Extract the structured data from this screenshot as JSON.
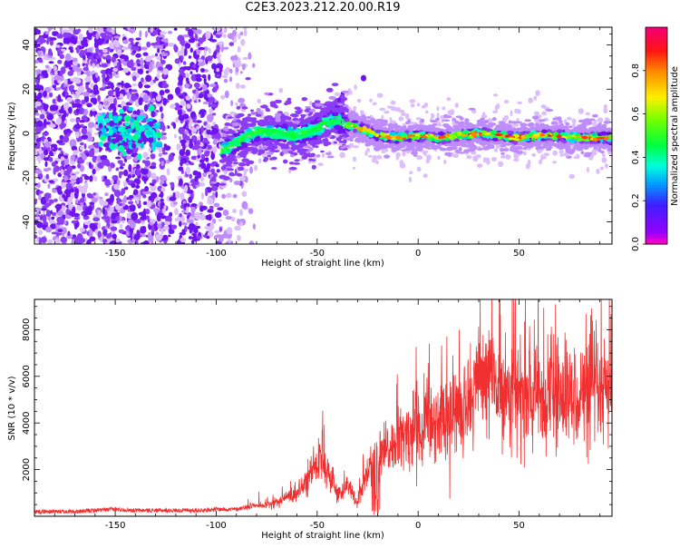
{
  "figure": {
    "title": "C2E3.2023.212.20.00.R19"
  },
  "chart_data": [
    {
      "type": "heatmap",
      "xlabel": "Height of straight line (km)",
      "ylabel": "Frequency (Hz)",
      "xlim": [
        -190,
        96
      ],
      "ylim": [
        -50,
        48
      ],
      "xticks": [
        "-150",
        "-100",
        "-50",
        "0",
        "50"
      ],
      "xtick_values": [
        -150,
        -100,
        -50,
        0,
        50
      ],
      "yticks": [
        "-40",
        "-20",
        "0",
        "20",
        "40"
      ],
      "ytick_values": [
        -40,
        -20,
        0,
        20,
        40
      ],
      "colorbar": {
        "label": "Normalized spectral amplitude",
        "range": [
          0,
          1
        ],
        "ticks": [
          "0.0",
          "0.2",
          "0.4",
          "0.6",
          "0.8"
        ],
        "tick_values": [
          0.0,
          0.2,
          0.4,
          0.6,
          0.8
        ],
        "colormap": "gist_rainbow_r"
      },
      "ridge": {
        "x": [
          -97,
          -90,
          -80,
          -70,
          -60,
          -50,
          -45,
          -40,
          -35,
          -30,
          -25,
          -20,
          -10,
          0,
          10,
          20,
          30,
          40,
          50,
          60,
          70,
          80,
          90,
          96
        ],
        "freq": [
          -8,
          -4,
          1,
          0,
          -1,
          2,
          5,
          6,
          4,
          3,
          1,
          -1,
          -2,
          -1,
          -2,
          -1,
          0,
          -1,
          -2,
          -1,
          -1,
          -2,
          -2,
          -2
        ]
      }
    },
    {
      "type": "line",
      "xlabel": "Height of straight line (km)",
      "ylabel": "SNR (10 * v/v)",
      "xlim": [
        -190,
        96
      ],
      "ylim": [
        0,
        9300
      ],
      "xticks": [
        "-150",
        "-100",
        "-50",
        "0",
        "50"
      ],
      "xtick_values": [
        -150,
        -100,
        -50,
        0,
        50
      ],
      "yticks": [
        "2000",
        "4000",
        "6000",
        "8000"
      ],
      "ytick_values": [
        2000,
        4000,
        6000,
        8000
      ],
      "series": [
        {
          "color": "#f03030",
          "x": [
            -190,
            -180,
            -170,
            -160,
            -150,
            -140,
            -130,
            -120,
            -110,
            -100,
            -90,
            -85,
            -80,
            -75,
            -70,
            -65,
            -60,
            -55,
            -50,
            -47,
            -45,
            -42,
            -40,
            -38,
            -35,
            -32,
            -30,
            -27,
            -25,
            -22,
            -20,
            -15,
            -10,
            -5,
            0,
            5,
            10,
            15,
            20,
            25,
            30,
            35,
            40,
            45,
            50,
            55,
            60,
            65,
            70,
            75,
            80,
            85,
            90,
            96
          ],
          "y": [
            200,
            200,
            200,
            250,
            300,
            250,
            250,
            250,
            250,
            300,
            300,
            400,
            500,
            500,
            600,
            800,
            1000,
            1500,
            2200,
            2600,
            2000,
            1500,
            1100,
            900,
            1500,
            800,
            500,
            1500,
            2000,
            2400,
            2500,
            2800,
            3200,
            3500,
            3800,
            4000,
            4200,
            4300,
            4500,
            5000,
            5800,
            6000,
            5500,
            5500,
            5200,
            5000,
            5200,
            5000,
            5200,
            5000,
            5300,
            5100,
            5200,
            5200
          ]
        }
      ]
    }
  ]
}
